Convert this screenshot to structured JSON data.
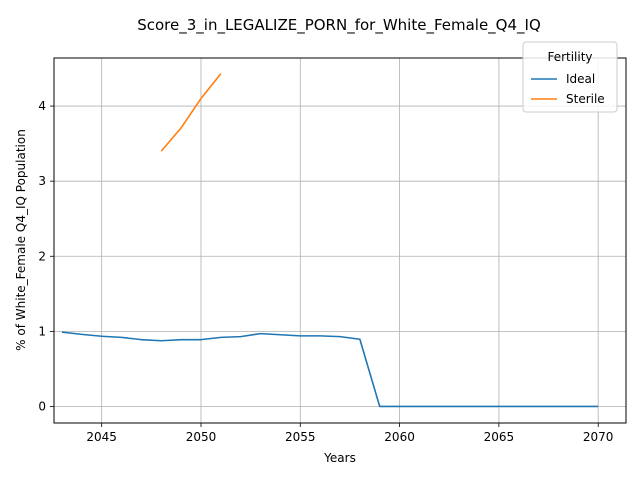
{
  "chart_data": {
    "type": "line",
    "title": "Score_3_in_LEGALIZE_PORN_for_White_Female_Q4_IQ",
    "xlabel": "Years",
    "ylabel": "% of White_Female Q4_IQ Population",
    "xlim": [
      2042.6,
      2071.4
    ],
    "ylim": [
      -0.22,
      4.64
    ],
    "x_ticks": [
      2045,
      2050,
      2055,
      2060,
      2065,
      2070
    ],
    "y_ticks": [
      0,
      1,
      2,
      3,
      4
    ],
    "grid": true,
    "legend": {
      "title": "Fertility",
      "placement": "top-right"
    },
    "series": [
      {
        "name": "Ideal",
        "color": "#1f77b4",
        "points": [
          [
            2043,
            0.99
          ],
          [
            2044,
            0.96
          ],
          [
            2045,
            0.935
          ],
          [
            2046,
            0.92
          ],
          [
            2047,
            0.89
          ],
          [
            2048,
            0.875
          ],
          [
            2049,
            0.89
          ],
          [
            2050,
            0.89
          ],
          [
            2051,
            0.92
          ],
          [
            2052,
            0.93
          ],
          [
            2053,
            0.97
          ],
          [
            2054,
            0.955
          ],
          [
            2055,
            0.94
          ],
          [
            2056,
            0.94
          ],
          [
            2057,
            0.93
          ],
          [
            2058,
            0.895
          ],
          [
            2059,
            0.0
          ],
          [
            2060,
            0.0
          ],
          [
            2061,
            0.0
          ],
          [
            2062,
            0.0
          ],
          [
            2063,
            0.0
          ],
          [
            2064,
            0.0
          ],
          [
            2065,
            0.0
          ],
          [
            2066,
            0.0
          ],
          [
            2067,
            0.0
          ],
          [
            2068,
            0.0
          ],
          [
            2069,
            0.0
          ],
          [
            2070,
            0.0
          ]
        ]
      },
      {
        "name": "Sterile",
        "color": "#ff7f0e",
        "points": [
          [
            2048,
            3.4
          ],
          [
            2049,
            3.71
          ],
          [
            2050,
            4.1
          ],
          [
            2051,
            4.43
          ]
        ]
      }
    ]
  }
}
